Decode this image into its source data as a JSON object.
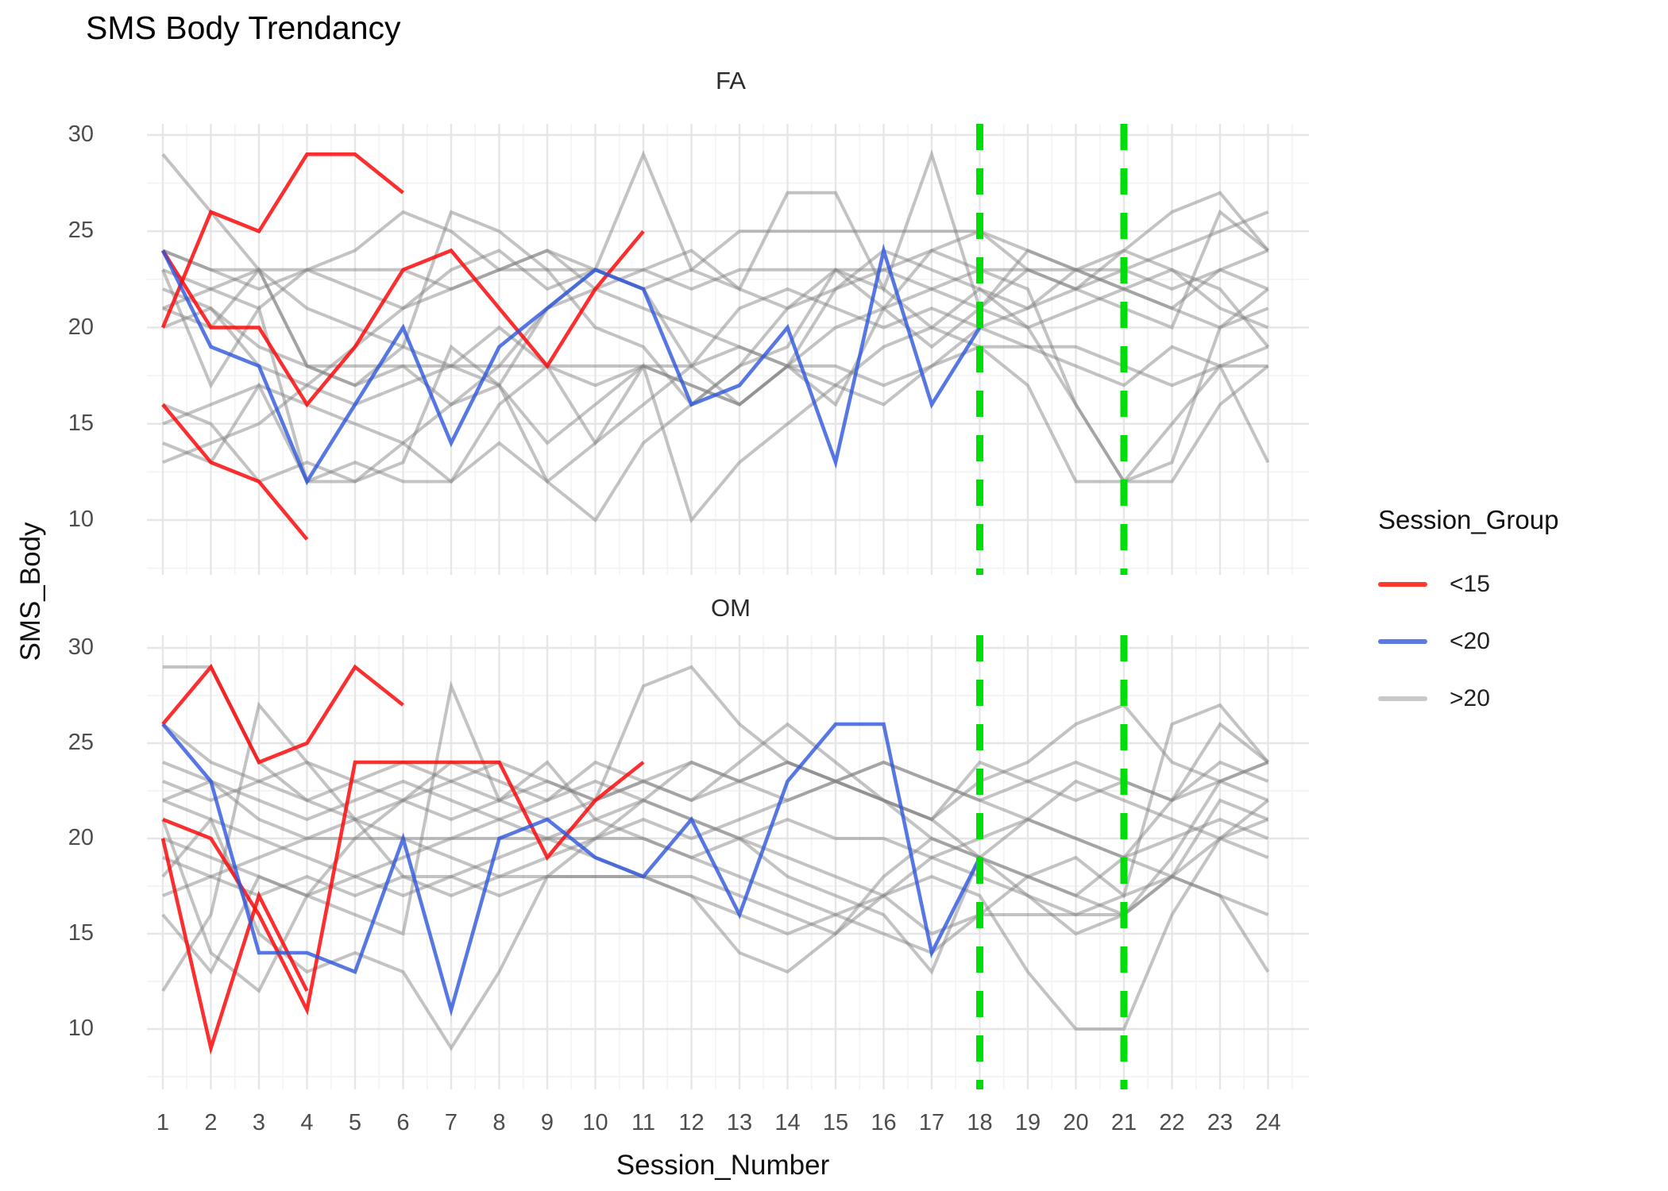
{
  "title": "SMS Body Trendancy",
  "colors": {
    "red": "rgba(250,10,10,0.85)",
    "blue": "rgba(45,85,220,0.80)",
    "gray": "rgba(130,130,130,0.48)",
    "green": "#00DE0A",
    "key_red": "#FF3B30",
    "key_blue": "#5B7BE0",
    "key_gray": "#C8C8C8",
    "grid_major": "#E6E6E6",
    "grid_minor": "#F3F3F3"
  },
  "legend": {
    "title": "Session_Group",
    "entries": [
      {
        "label": "<15",
        "color_key": "key_red"
      },
      {
        "label": "<20",
        "color_key": "key_blue"
      },
      {
        "label": ">20",
        "color_key": "key_gray"
      }
    ]
  },
  "chart_data": {
    "type": "line",
    "title": "SMS Body Trendancy",
    "xlabel": "Session_Number",
    "ylabel": "SMS_Body",
    "x_ticks": [
      1,
      2,
      3,
      4,
      5,
      6,
      7,
      8,
      9,
      10,
      11,
      12,
      13,
      14,
      15,
      16,
      17,
      18,
      19,
      20,
      21,
      22,
      23,
      24
    ],
    "y_ticks": [
      30,
      25,
      20,
      15,
      10
    ],
    "ylim": [
      7,
      31
    ],
    "grid": "on",
    "legend_position": "right",
    "vlines": {
      "x": [
        18,
        21
      ],
      "style": "dashed",
      "color": "green"
    },
    "facets": [
      {
        "label": "FA",
        "series": [
          {
            "group": ">20",
            "start": 1,
            "values": [
              29,
              26,
              23,
              18,
              17,
              18,
              16,
              17,
              14,
              16,
              18,
              17,
              16,
              18,
              17,
              16,
              18,
              20,
              19,
              18,
              17,
              19,
              18,
              18
            ]
          },
          {
            "group": ">20",
            "start": 1,
            "values": [
              24,
              23,
              23,
              23,
              23,
              23,
              22,
              23,
              23,
              23,
              23,
              22,
              23,
              23,
              23,
              23,
              22,
              23,
              23,
              23,
              23,
              22,
              23,
              24
            ]
          },
          {
            "group": ">20",
            "start": 1,
            "values": [
              21,
              20,
              23,
              18,
              17,
              19,
              26,
              25,
              23,
              20,
              19,
              16,
              18,
              19,
              23,
              21,
              19,
              21,
              24,
              23,
              22,
              21,
              20,
              22
            ]
          },
          {
            "group": ">20",
            "start": 1,
            "values": [
              14,
              13,
              17,
              12,
              13,
              12,
              12,
              14,
              12,
              14,
              18,
              10,
              13,
              15,
              17,
              19,
              20,
              19,
              17,
              12,
              12,
              15,
              18,
              13
            ]
          },
          {
            "group": ">20",
            "start": 1,
            "values": [
              22,
              21,
              19,
              18,
              18,
              18,
              18,
              18,
              18,
              18,
              18,
              18,
              19,
              18,
              18,
              17,
              18,
              19,
              19,
              19,
              18,
              17,
              18,
              19
            ]
          },
          {
            "group": ">20",
            "start": 1,
            "values": [
              23,
              17,
              21,
              12,
              12,
              13,
              19,
              17,
              12,
              10,
              14,
              16,
              18,
              21,
              23,
              22,
              20,
              22,
              21,
              23,
              22,
              21,
              23,
              22
            ]
          },
          {
            "group": ">20",
            "start": 1,
            "values": [
              13,
              14,
              15,
              17,
              19,
              21,
              23,
              24,
              22,
              23,
              29,
              23,
              25,
              25,
              25,
              25,
              25,
              25,
              23,
              22,
              23,
              24,
              25,
              26
            ]
          },
          {
            "group": ">20",
            "start": 1,
            "values": [
              21,
              22,
              23,
              21,
              20,
              19,
              18,
              17,
              21,
              22,
              23,
              24,
              22,
              27,
              27,
              22,
              29,
              21,
              23,
              22,
              24,
              26,
              27,
              24
            ]
          },
          {
            "group": ">20",
            "start": 1,
            "values": [
              16,
              15,
              12,
              13,
              12,
              14,
              16,
              18,
              21,
              23,
              22,
              18,
              16,
              18,
              22,
              24,
              23,
              22,
              20,
              16,
              12,
              13,
              20,
              21
            ]
          },
          {
            "group": ">20",
            "start": 1,
            "values": [
              24,
              23,
              22,
              23,
              24,
              26,
              25,
              23,
              24,
              22,
              21,
              20,
              19,
              18,
              16,
              21,
              24,
              23,
              22,
              16,
              12,
              12,
              16,
              18
            ]
          },
          {
            "group": ">20",
            "start": 1,
            "values": [
              20,
              21,
              18,
              17,
              16,
              17,
              18,
              20,
              18,
              17,
              18,
              17,
              16,
              18,
              20,
              21,
              22,
              21,
              20,
              21,
              22,
              23,
              21,
              20
            ]
          },
          {
            "group": ">20",
            "start": 1,
            "values": [
              15,
              16,
              17,
              16,
              15,
              14,
              12,
              16,
              18,
              14,
              16,
              18,
              21,
              22,
              21,
              20,
              21,
              20,
              21,
              22,
              21,
              20,
              26,
              24
            ]
          },
          {
            "group": ">20",
            "start": 1,
            "values": [
              23,
              22,
              21,
              23,
              22,
              21,
              22,
              23,
              24,
              23,
              22,
              23,
              22,
              21,
              22,
              23,
              24,
              25,
              24,
              23,
              24,
              23,
              22,
              19
            ]
          },
          {
            "group": "<15",
            "start": 1,
            "values": [
              20,
              26,
              25,
              29,
              29,
              27
            ]
          },
          {
            "group": "<15",
            "start": 1,
            "values": [
              24,
              20,
              20,
              16,
              19,
              23,
              24,
              21,
              18,
              22,
              25
            ]
          },
          {
            "group": "<15",
            "start": 1,
            "values": [
              16,
              13,
              12,
              9
            ]
          },
          {
            "group": "<20",
            "start": 1,
            "values": [
              24,
              19,
              18,
              12,
              16,
              20,
              14,
              19,
              21,
              23,
              22,
              16,
              17,
              20,
              13,
              24,
              16,
              20
            ]
          }
        ]
      },
      {
        "label": "OM",
        "series": [
          {
            "group": ">20",
            "start": 1,
            "values": [
              29,
              29,
              24,
              22,
              23,
              22,
              21,
              22,
              23,
              22,
              23,
              24,
              23,
              22,
              23,
              22,
              21,
              24,
              23,
              22,
              23,
              22,
              23,
              24
            ]
          },
          {
            "group": ">20",
            "start": 1,
            "values": [
              12,
              16,
              27,
              24,
              21,
              18,
              17,
              18,
              18,
              18,
              18,
              18,
              17,
              16,
              15,
              17,
              19,
              18,
              17,
              15,
              16,
              18,
              20,
              21
            ]
          },
          {
            "group": ">20",
            "start": 1,
            "values": [
              22,
              23,
              21,
              20,
              20,
              20,
              20,
              20,
              20,
              20,
              20,
              19,
              20,
              21,
              20,
              20,
              19,
              20,
              21,
              20,
              19,
              20,
              21,
              20
            ]
          },
          {
            "group": ">20",
            "start": 1,
            "values": [
              16,
              13,
              18,
              17,
              16,
              15,
              28,
              22,
              24,
              21,
              22,
              24,
              23,
              24,
              23,
              22,
              21,
              19,
              18,
              17,
              16,
              19,
              23,
              24
            ]
          },
          {
            "group": ">20",
            "start": 1,
            "values": [
              23,
              22,
              23,
              22,
              21,
              22,
              23,
              22,
              21,
              22,
              28,
              29,
              26,
              24,
              23,
              22,
              21,
              23,
              24,
              26,
              27,
              24,
              23,
              22
            ]
          },
          {
            "group": ">20",
            "start": 1,
            "values": [
              18,
              21,
              15,
              13,
              14,
              13,
              9,
              13,
              18,
              20,
              22,
              21,
              20,
              18,
              17,
              16,
              13,
              19,
              21,
              23,
              22,
              21,
              20,
              19
            ]
          },
          {
            "group": ">20",
            "start": 1,
            "values": [
              26,
              24,
              23,
              24,
              23,
              24,
              23,
              24,
              23,
              22,
              23,
              22,
              23,
              24,
              23,
              24,
              23,
              22,
              23,
              24,
              23,
              22,
              24,
              23
            ]
          },
          {
            "group": ">20",
            "start": 1,
            "values": [
              21,
              14,
              12,
              17,
              20,
              22,
              24,
              23,
              22,
              24,
              23,
              22,
              24,
              26,
              24,
              22,
              20,
              19,
              18,
              17,
              19,
              22,
              26,
              24
            ]
          },
          {
            "group": ">20",
            "start": 1,
            "values": [
              17,
              18,
              17,
              18,
              17,
              18,
              18,
              17,
              18,
              18,
              18,
              17,
              14,
              13,
              15,
              18,
              20,
              19,
              17,
              16,
              17,
              18,
              17,
              16
            ]
          },
          {
            "group": ">20",
            "start": 1,
            "values": [
              24,
              23,
              22,
              21,
              22,
              23,
              22,
              21,
              20,
              19,
              18,
              17,
              16,
              15,
              16,
              17,
              15,
              16,
              16,
              16,
              16,
              18,
              22,
              21
            ]
          },
          {
            "group": ">20",
            "start": 1,
            "values": [
              20,
              19,
              18,
              17,
              18,
              19,
              20,
              21,
              22,
              23,
              22,
              21,
              20,
              19,
              18,
              17,
              18,
              17,
              13,
              10,
              10,
              16,
              20,
              22
            ]
          },
          {
            "group": ">20",
            "start": 1,
            "values": [
              19,
              18,
              19,
              20,
              21,
              20,
              19,
              18,
              19,
              20,
              21,
              20,
              21,
              22,
              23,
              24,
              23,
              22,
              21,
              20,
              19,
              18,
              17,
              13
            ]
          },
          {
            "group": ">20",
            "start": 1,
            "values": [
              22,
              21,
              20,
              19,
              18,
              17,
              18,
              19,
              20,
              21,
              20,
              19,
              18,
              17,
              16,
              15,
              14,
              16,
              18,
              19,
              17,
              26,
              27,
              24
            ]
          },
          {
            "group": "<15",
            "start": 1,
            "values": [
              26,
              29,
              24,
              25,
              29,
              27
            ]
          },
          {
            "group": "<15",
            "start": 1,
            "values": [
              21,
              20,
              16,
              11,
              24,
              24,
              24,
              24,
              19,
              22,
              24
            ]
          },
          {
            "group": "<15",
            "start": 1,
            "values": [
              20,
              9,
              17,
              12
            ]
          },
          {
            "group": "<20",
            "start": 1,
            "values": [
              26,
              23,
              14,
              14,
              13,
              20,
              11,
              20,
              21,
              19,
              18,
              21,
              16,
              23,
              26,
              26,
              14,
              19
            ]
          }
        ]
      }
    ]
  }
}
